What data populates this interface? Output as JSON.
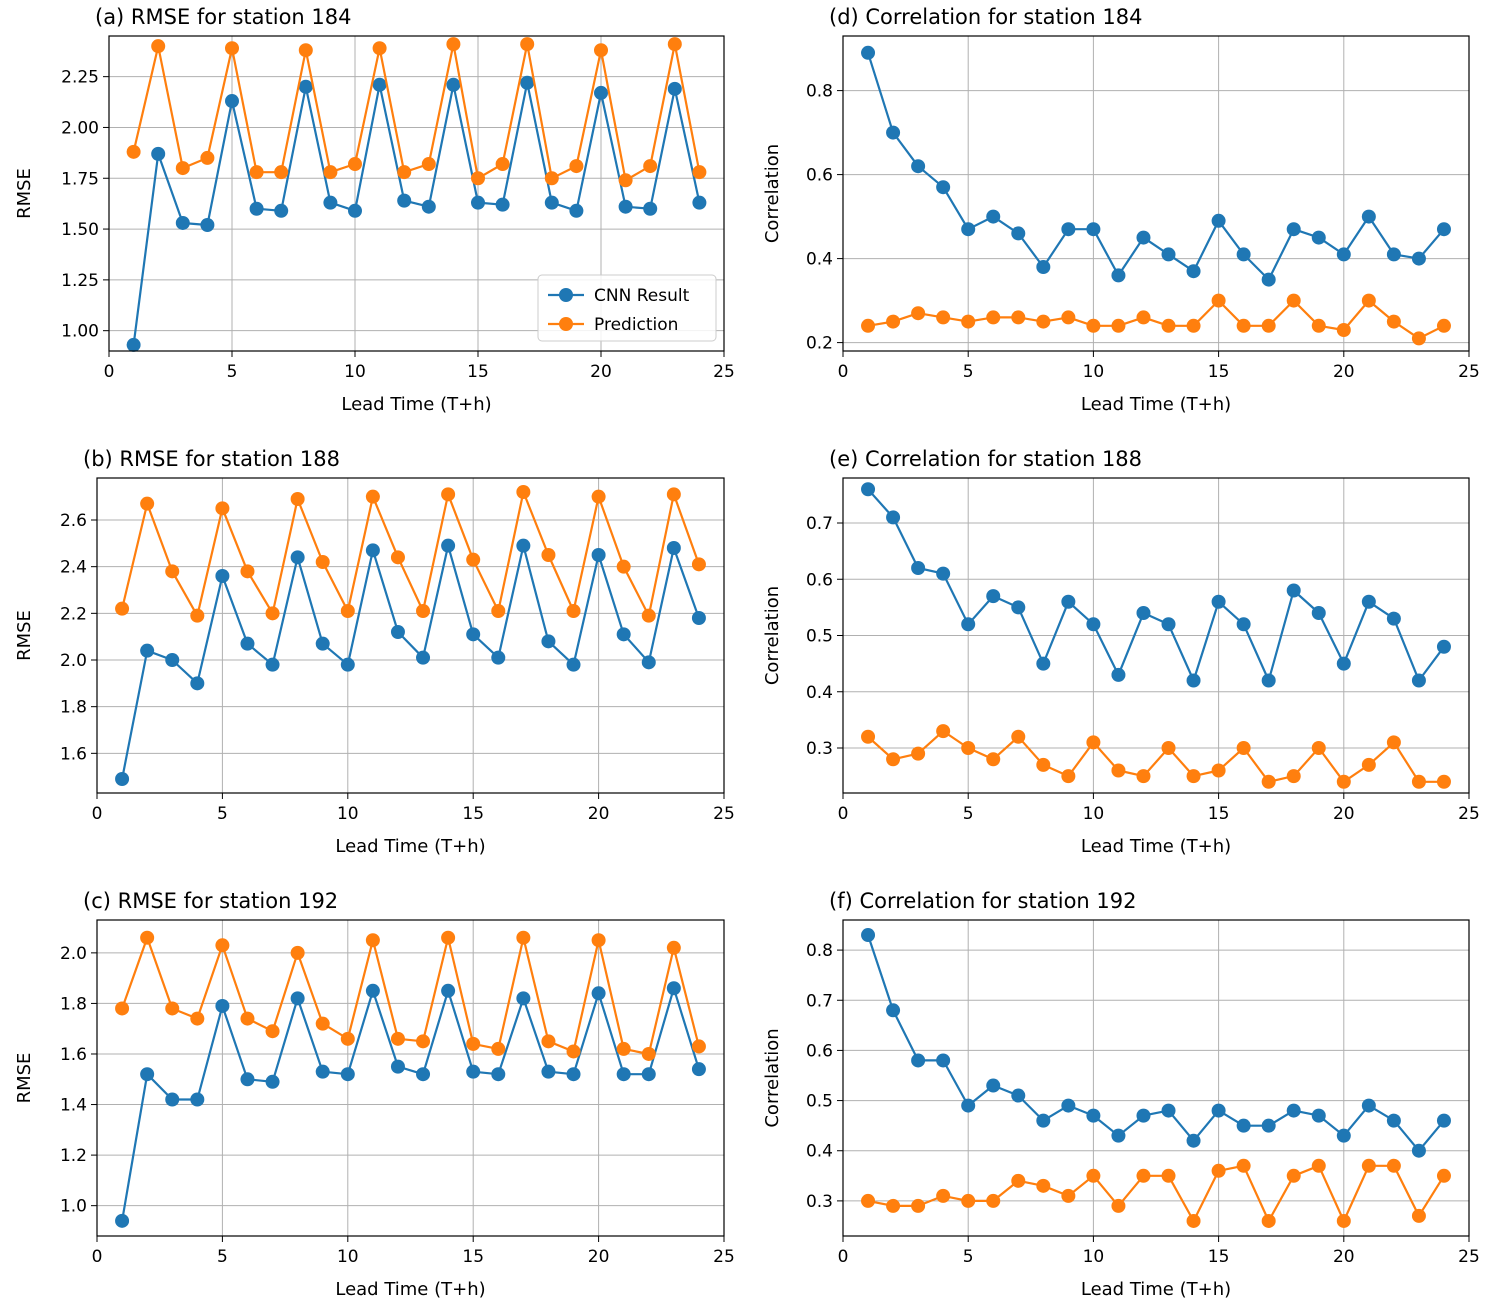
{
  "chart_data": [
    {
      "type": "line",
      "title": "(a) RMSE for station 184",
      "xlabel": "Lead Time (T+h)",
      "ylabel": "RMSE",
      "xlim": [
        0,
        25
      ],
      "ylim": [
        0.9,
        2.45
      ],
      "xticks": [
        "0",
        "5",
        "10",
        "15",
        "20",
        "25"
      ],
      "yticks": [
        "1.00",
        "1.25",
        "1.50",
        "1.75",
        "2.00",
        "2.25"
      ],
      "ytick_values": [
        1.0,
        1.25,
        1.5,
        1.75,
        2.0,
        2.25
      ],
      "grid": true,
      "legend": "lower-right",
      "x": [
        1,
        2,
        3,
        4,
        5,
        6,
        7,
        8,
        9,
        10,
        11,
        12,
        13,
        14,
        15,
        16,
        17,
        18,
        19,
        20,
        21,
        22,
        23,
        24
      ],
      "series": [
        {
          "name": "CNN Result",
          "color": "#1f77b4",
          "values": [
            0.93,
            1.87,
            1.53,
            1.52,
            2.13,
            1.6,
            1.59,
            2.2,
            1.63,
            1.59,
            2.21,
            1.64,
            1.61,
            2.21,
            1.63,
            1.62,
            2.22,
            1.63,
            1.59,
            2.17,
            1.61,
            1.6,
            2.19,
            1.63
          ]
        },
        {
          "name": "Prediction",
          "color": "#ff7f0e",
          "values": [
            1.88,
            2.4,
            1.8,
            1.85,
            2.39,
            1.78,
            1.78,
            2.38,
            1.78,
            1.82,
            2.39,
            1.78,
            1.82,
            2.41,
            1.75,
            1.82,
            2.41,
            1.75,
            1.81,
            2.38,
            1.74,
            1.81,
            2.41,
            1.78
          ]
        }
      ]
    },
    {
      "type": "line",
      "title": "(b) RMSE for station 188",
      "xlabel": "Lead Time (T+h)",
      "ylabel": "RMSE",
      "xlim": [
        0,
        25
      ],
      "ylim": [
        1.43,
        2.78
      ],
      "xticks": [
        "0",
        "5",
        "10",
        "15",
        "20",
        "25"
      ],
      "yticks": [
        "1.6",
        "1.8",
        "2.0",
        "2.2",
        "2.4",
        "2.6"
      ],
      "ytick_values": [
        1.6,
        1.8,
        2.0,
        2.2,
        2.4,
        2.6
      ],
      "grid": true,
      "x": [
        1,
        2,
        3,
        4,
        5,
        6,
        7,
        8,
        9,
        10,
        11,
        12,
        13,
        14,
        15,
        16,
        17,
        18,
        19,
        20,
        21,
        22,
        23,
        24
      ],
      "series": [
        {
          "name": "CNN Result",
          "color": "#1f77b4",
          "values": [
            1.49,
            2.04,
            2.0,
            1.9,
            2.36,
            2.07,
            1.98,
            2.44,
            2.07,
            1.98,
            2.47,
            2.12,
            2.01,
            2.49,
            2.11,
            2.01,
            2.49,
            2.08,
            1.98,
            2.45,
            2.11,
            1.99,
            2.48,
            2.18
          ]
        },
        {
          "name": "Prediction",
          "color": "#ff7f0e",
          "values": [
            2.22,
            2.67,
            2.38,
            2.19,
            2.65,
            2.38,
            2.2,
            2.69,
            2.42,
            2.21,
            2.7,
            2.44,
            2.21,
            2.71,
            2.43,
            2.21,
            2.72,
            2.45,
            2.21,
            2.7,
            2.4,
            2.19,
            2.71,
            2.41
          ]
        }
      ]
    },
    {
      "type": "line",
      "title": "(c) RMSE for station 192",
      "xlabel": "Lead Time (T+h)",
      "ylabel": "RMSE",
      "xlim": [
        0,
        25
      ],
      "ylim": [
        0.88,
        2.13
      ],
      "xticks": [
        "0",
        "5",
        "10",
        "15",
        "20",
        "25"
      ],
      "yticks": [
        "1.0",
        "1.2",
        "1.4",
        "1.6",
        "1.8",
        "2.0"
      ],
      "ytick_values": [
        1.0,
        1.2,
        1.4,
        1.6,
        1.8,
        2.0
      ],
      "grid": true,
      "x": [
        1,
        2,
        3,
        4,
        5,
        6,
        7,
        8,
        9,
        10,
        11,
        12,
        13,
        14,
        15,
        16,
        17,
        18,
        19,
        20,
        21,
        22,
        23,
        24
      ],
      "series": [
        {
          "name": "CNN Result",
          "color": "#1f77b4",
          "values": [
            0.94,
            1.52,
            1.42,
            1.42,
            1.79,
            1.5,
            1.49,
            1.82,
            1.53,
            1.52,
            1.85,
            1.55,
            1.52,
            1.85,
            1.53,
            1.52,
            1.82,
            1.53,
            1.52,
            1.84,
            1.52,
            1.52,
            1.86,
            1.54
          ]
        },
        {
          "name": "Prediction",
          "color": "#ff7f0e",
          "values": [
            1.78,
            2.06,
            1.78,
            1.74,
            2.03,
            1.74,
            1.69,
            2.0,
            1.72,
            1.66,
            2.05,
            1.66,
            1.65,
            2.06,
            1.64,
            1.62,
            2.06,
            1.65,
            1.61,
            2.05,
            1.62,
            1.6,
            2.02,
            1.63
          ]
        }
      ]
    },
    {
      "type": "line",
      "title": "(d) Correlation for station 184",
      "xlabel": "Lead Time (T+h)",
      "ylabel": "Correlation",
      "xlim": [
        0,
        25
      ],
      "ylim": [
        0.18,
        0.93
      ],
      "xticks": [
        "0",
        "5",
        "10",
        "15",
        "20",
        "25"
      ],
      "yticks": [
        "0.2",
        "0.4",
        "0.6",
        "0.8"
      ],
      "ytick_values": [
        0.2,
        0.4,
        0.6,
        0.8
      ],
      "grid": true,
      "x": [
        1,
        2,
        3,
        4,
        5,
        6,
        7,
        8,
        9,
        10,
        11,
        12,
        13,
        14,
        15,
        16,
        17,
        18,
        19,
        20,
        21,
        22,
        23,
        24
      ],
      "series": [
        {
          "name": "CNN Result",
          "color": "#1f77b4",
          "values": [
            0.89,
            0.7,
            0.62,
            0.57,
            0.47,
            0.5,
            0.46,
            0.38,
            0.47,
            0.47,
            0.36,
            0.45,
            0.41,
            0.37,
            0.49,
            0.41,
            0.35,
            0.47,
            0.45,
            0.41,
            0.5,
            0.41,
            0.4,
            0.47
          ]
        },
        {
          "name": "Prediction",
          "color": "#ff7f0e",
          "values": [
            0.24,
            0.25,
            0.27,
            0.26,
            0.25,
            0.26,
            0.26,
            0.25,
            0.26,
            0.24,
            0.24,
            0.26,
            0.24,
            0.24,
            0.3,
            0.24,
            0.24,
            0.3,
            0.24,
            0.23,
            0.3,
            0.25,
            0.21,
            0.24
          ]
        }
      ]
    },
    {
      "type": "line",
      "title": "(e) Correlation for station 188",
      "xlabel": "Lead Time (T+h)",
      "ylabel": "Correlation",
      "xlim": [
        0,
        25
      ],
      "ylim": [
        0.22,
        0.78
      ],
      "xticks": [
        "0",
        "5",
        "10",
        "15",
        "20",
        "25"
      ],
      "yticks": [
        "0.3",
        "0.4",
        "0.5",
        "0.6",
        "0.7"
      ],
      "ytick_values": [
        0.3,
        0.4,
        0.5,
        0.6,
        0.7
      ],
      "grid": true,
      "x": [
        1,
        2,
        3,
        4,
        5,
        6,
        7,
        8,
        9,
        10,
        11,
        12,
        13,
        14,
        15,
        16,
        17,
        18,
        19,
        20,
        21,
        22,
        23,
        24
      ],
      "series": [
        {
          "name": "CNN Result",
          "color": "#1f77b4",
          "values": [
            0.76,
            0.71,
            0.62,
            0.61,
            0.52,
            0.57,
            0.55,
            0.45,
            0.56,
            0.52,
            0.43,
            0.54,
            0.52,
            0.42,
            0.56,
            0.52,
            0.42,
            0.58,
            0.54,
            0.45,
            0.56,
            0.53,
            0.42,
            0.48
          ]
        },
        {
          "name": "Prediction",
          "color": "#ff7f0e",
          "values": [
            0.32,
            0.28,
            0.29,
            0.33,
            0.3,
            0.28,
            0.32,
            0.27,
            0.25,
            0.31,
            0.26,
            0.25,
            0.3,
            0.25,
            0.26,
            0.3,
            0.24,
            0.25,
            0.3,
            0.24,
            0.27,
            0.31,
            0.24,
            0.24
          ]
        }
      ]
    },
    {
      "type": "line",
      "title": "(f) Correlation for station 192",
      "xlabel": "Lead Time (T+h)",
      "ylabel": "Correlation",
      "xlim": [
        0,
        25
      ],
      "ylim": [
        0.23,
        0.86
      ],
      "xticks": [
        "0",
        "5",
        "10",
        "15",
        "20",
        "25"
      ],
      "yticks": [
        "0.3",
        "0.4",
        "0.5",
        "0.6",
        "0.7",
        "0.8"
      ],
      "ytick_values": [
        0.3,
        0.4,
        0.5,
        0.6,
        0.7,
        0.8
      ],
      "grid": true,
      "x": [
        1,
        2,
        3,
        4,
        5,
        6,
        7,
        8,
        9,
        10,
        11,
        12,
        13,
        14,
        15,
        16,
        17,
        18,
        19,
        20,
        21,
        22,
        23,
        24
      ],
      "series": [
        {
          "name": "CNN Result",
          "color": "#1f77b4",
          "values": [
            0.83,
            0.68,
            0.58,
            0.58,
            0.49,
            0.53,
            0.51,
            0.46,
            0.49,
            0.47,
            0.43,
            0.47,
            0.48,
            0.42,
            0.48,
            0.45,
            0.45,
            0.48,
            0.47,
            0.43,
            0.49,
            0.46,
            0.4,
            0.46
          ]
        },
        {
          "name": "Prediction",
          "color": "#ff7f0e",
          "values": [
            0.3,
            0.29,
            0.29,
            0.31,
            0.3,
            0.3,
            0.34,
            0.33,
            0.31,
            0.35,
            0.29,
            0.35,
            0.35,
            0.26,
            0.36,
            0.37,
            0.26,
            0.35,
            0.37,
            0.26,
            0.37,
            0.37,
            0.27,
            0.35
          ]
        }
      ]
    }
  ]
}
